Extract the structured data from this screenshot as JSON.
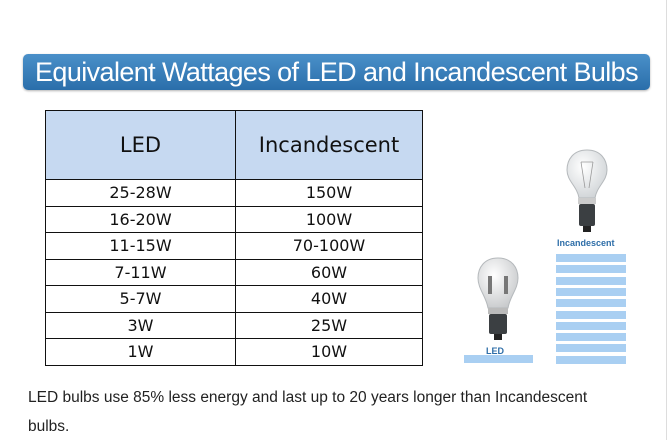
{
  "title": "Equivalent Wattages of LED and Incandescent Bulbs",
  "table": {
    "headers": [
      "LED",
      "Incandescent"
    ],
    "rows": [
      [
        "25-28W",
        "150W"
      ],
      [
        "16-20W",
        "100W"
      ],
      [
        "11-15W",
        "70-100W"
      ],
      [
        "7-11W",
        "60W"
      ],
      [
        "5-7W",
        "40W"
      ],
      [
        "3W",
        "25W"
      ],
      [
        "1W",
        "10W"
      ]
    ]
  },
  "comparison": {
    "incandescent_label": "Incandescent",
    "led_label": "LED",
    "incandescent_bars": 10,
    "led_bars": 1,
    "bar_color": "#a9cff2"
  },
  "caption": "LED bulbs use 85% less energy and last up to 20 years longer than Incandescent bulbs."
}
